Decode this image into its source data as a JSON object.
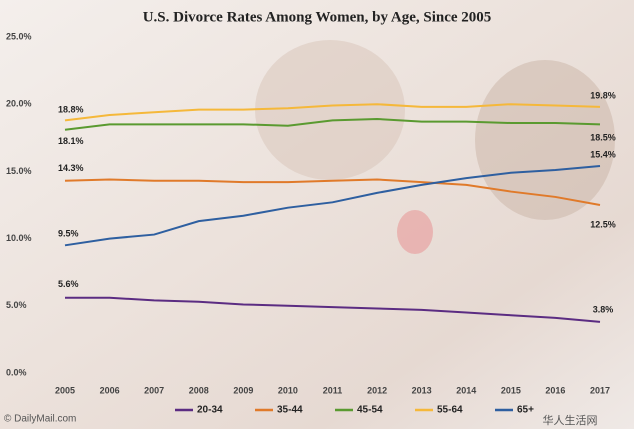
{
  "chart_data": {
    "type": "line",
    "title": "U.S. Divorce Rates Among Women, by Age, Since 2005",
    "categories": [
      "2005",
      "2006",
      "2007",
      "2008",
      "2009",
      "2010",
      "2011",
      "2012",
      "2013",
      "2014",
      "2015",
      "2016",
      "2017"
    ],
    "series": [
      {
        "name": "20-34",
        "color": "#5b2c82",
        "values": [
          5.6,
          5.6,
          5.4,
          5.3,
          5.1,
          5.0,
          4.9,
          4.8,
          4.7,
          4.5,
          4.3,
          4.1,
          3.8
        ],
        "value_labels": [
          "5.6%",
          null,
          null,
          null,
          null,
          null,
          null,
          null,
          null,
          null,
          null,
          null,
          "3.8%"
        ]
      },
      {
        "name": "35-44",
        "color": "#e07a2a",
        "values": [
          14.3,
          14.4,
          14.3,
          14.3,
          14.2,
          14.2,
          14.3,
          14.4,
          14.2,
          14.0,
          13.5,
          13.1,
          12.5
        ],
        "value_labels": [
          "14.3%",
          null,
          null,
          null,
          null,
          null,
          null,
          null,
          null,
          null,
          null,
          null,
          "12.5%"
        ]
      },
      {
        "name": "45-54",
        "color": "#5a9a30",
        "values": [
          18.1,
          18.5,
          18.5,
          18.5,
          18.5,
          18.4,
          18.8,
          18.9,
          18.7,
          18.7,
          18.6,
          18.6,
          18.5
        ],
        "value_labels": [
          "18.1%",
          null,
          null,
          null,
          null,
          null,
          null,
          null,
          null,
          null,
          null,
          null,
          "18.5%"
        ]
      },
      {
        "name": "55-64",
        "color": "#f5b83a",
        "values": [
          18.8,
          19.2,
          19.4,
          19.6,
          19.6,
          19.7,
          19.9,
          20.0,
          19.8,
          19.8,
          20.0,
          19.9,
          19.8
        ],
        "value_labels": [
          "18.8%",
          null,
          null,
          null,
          null,
          null,
          null,
          null,
          null,
          null,
          null,
          null,
          "19.8%"
        ]
      },
      {
        "name": "65+",
        "color": "#2e5fa0",
        "values": [
          9.5,
          10.0,
          10.3,
          11.3,
          11.7,
          12.3,
          12.7,
          13.4,
          14.0,
          14.5,
          14.9,
          15.1,
          15.4
        ],
        "value_labels": [
          "9.5%",
          null,
          null,
          null,
          null,
          null,
          null,
          null,
          null,
          null,
          null,
          null,
          "15.4%"
        ]
      }
    ],
    "ylim": [
      0,
      25
    ],
    "yticks": [
      {
        "value": 0,
        "label": "0.0%"
      },
      {
        "value": 5,
        "label": "5.0%"
      },
      {
        "value": 10,
        "label": "10.0%"
      },
      {
        "value": 15,
        "label": "15.0%"
      },
      {
        "value": 20,
        "label": "20.0%"
      },
      {
        "value": 25,
        "label": "25.0%"
      }
    ],
    "grid": false,
    "legend": "bottom",
    "source": "© DailyMail.com",
    "watermark": "华人生活网"
  }
}
